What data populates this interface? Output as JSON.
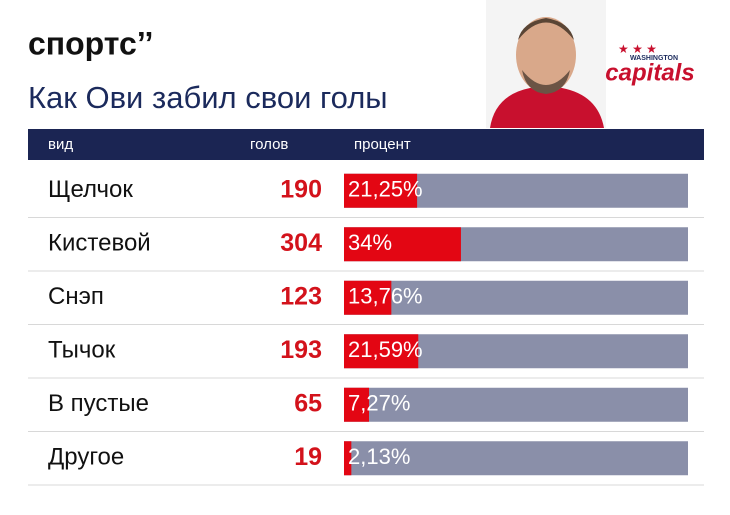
{
  "brand": "спортс’’",
  "team_logo": {
    "city": "WASHINGTON",
    "name": "capitals"
  },
  "chart_data": {
    "type": "bar",
    "title": "Как Ови забил свои голы",
    "columns": [
      "вид",
      "голов",
      "процент"
    ],
    "categories": [
      "Щелчок",
      "Кистевой",
      "Снэп",
      "Тычок",
      "В пустые",
      "Другое"
    ],
    "goals": [
      190,
      304,
      123,
      193,
      65,
      19
    ],
    "values": [
      21.25,
      34,
      13.76,
      21.59,
      7.27,
      2.13
    ],
    "value_labels": [
      "21,25%",
      "34%",
      "13,76%",
      "21,59%",
      "7,27%",
      "2,13%"
    ],
    "xlim": [
      0,
      100
    ],
    "color": "#e30613",
    "track_color": "#8a8fa9"
  }
}
